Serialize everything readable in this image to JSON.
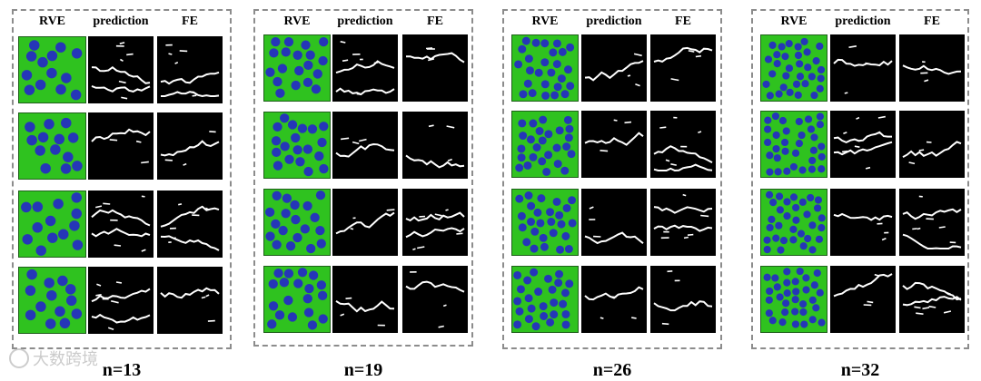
{
  "figure": {
    "column_headers": [
      "RVE",
      "prediction",
      "FE"
    ],
    "panels": [
      {
        "caption": "n=13",
        "fiber_count": 13,
        "rows": 4
      },
      {
        "caption": "n=19",
        "fiber_count": 19,
        "rows": 4
      },
      {
        "caption": "n=26",
        "fiber_count": 26,
        "rows": 4
      },
      {
        "caption": "n=32",
        "fiber_count": 32,
        "rows": 4
      }
    ]
  },
  "watermark": {
    "text": "大数跨境",
    "logo": "chat-bubble-logo"
  },
  "colors": {
    "matrix": "#2fc21f",
    "fiber": "#2536b8",
    "background": "#000000",
    "crack": "#ffffff",
    "frame": "#8c8c8c"
  }
}
